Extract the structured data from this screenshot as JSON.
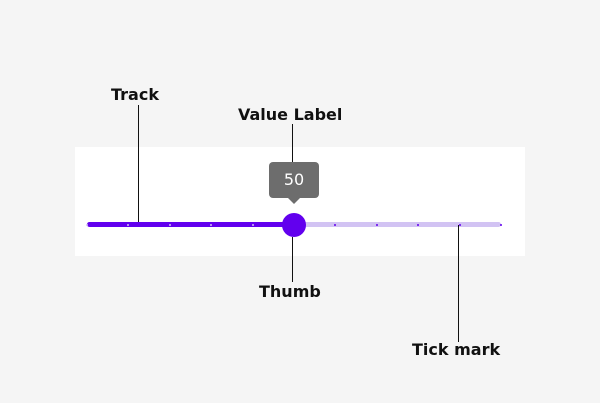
{
  "slider": {
    "value": 50,
    "min": 0,
    "max": 100,
    "step": 10,
    "value_label": "50",
    "active_color": "#6200ee",
    "inactive_color": "#d2c3f3",
    "thumb_color": "#6200ee",
    "value_label_background": "#6d6d6d"
  },
  "callouts": {
    "track": "Track",
    "value_label": "Value Label",
    "thumb": "Thumb",
    "tick_mark": "Tick mark"
  }
}
